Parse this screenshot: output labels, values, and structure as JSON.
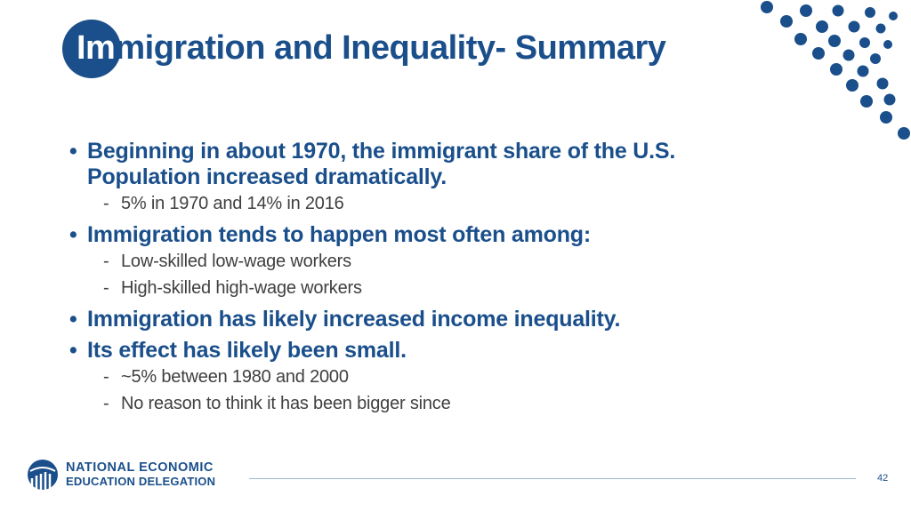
{
  "slide": {
    "title_prefix": "Im",
    "title_rest": "migration and Inequality- Summary",
    "page_number": "42"
  },
  "content": {
    "bullets": [
      {
        "text": "Beginning in about 1970, the immigrant share of the U.S. Population increased dramatically.",
        "subs": [
          "5% in 1970 and 14% in 2016"
        ]
      },
      {
        "text": "Immigration tends to happen most often among:",
        "subs": [
          "Low-skilled low-wage workers",
          "High-skilled high-wage workers"
        ]
      },
      {
        "text": "Immigration has likely increased income inequality.",
        "subs": []
      },
      {
        "text": "Its effect has likely been small.",
        "subs": [
          "~5% between 1980 and 2000",
          "No reason to think it has been bigger since"
        ]
      }
    ]
  },
  "logo": {
    "line1": "NATIONAL ECONOMIC",
    "line2": "EDUCATION DELEGATION"
  },
  "colors": {
    "primary_blue": "#1a4f8b",
    "body_text": "#404040"
  }
}
